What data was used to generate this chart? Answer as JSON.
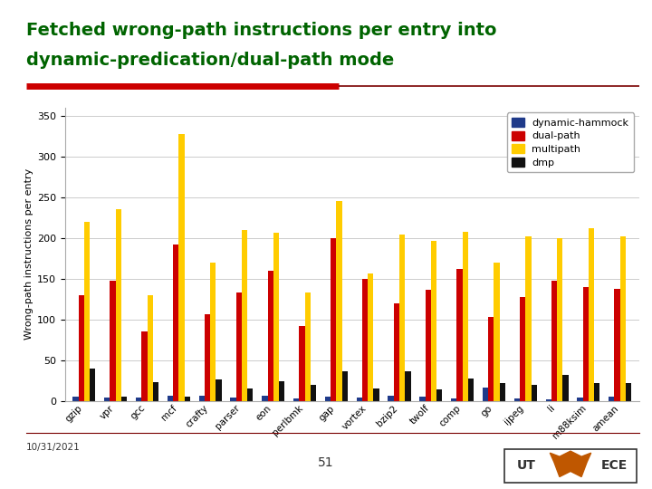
{
  "title_line1": "Fetched wrong-path instructions per entry into",
  "title_line2": "dynamic-predication/dual-path mode",
  "title_color": "#006400",
  "ylabel": "Wrong-path instructions per entry",
  "categories": [
    "gzip",
    "vpr",
    "gcc",
    "mcf",
    "crafty",
    "parser",
    "eon",
    "perlbmk",
    "gap",
    "vortex",
    "bzip2",
    "twolf",
    "comp",
    "go",
    "ijpeg",
    "li",
    "m88ksim",
    "amean"
  ],
  "dynamic_hammock": [
    5,
    4,
    4,
    7,
    7,
    4,
    6,
    3,
    5,
    4,
    6,
    5,
    3,
    16,
    3,
    2,
    4,
    5
  ],
  "dual_path": [
    130,
    148,
    85,
    192,
    107,
    133,
    160,
    92,
    200,
    150,
    120,
    137,
    162,
    103,
    128,
    148,
    140,
    138
  ],
  "multipath": [
    220,
    235,
    130,
    328,
    170,
    210,
    206,
    133,
    245,
    157,
    204,
    197,
    208,
    170,
    202,
    200,
    212,
    202
  ],
  "dmp": [
    40,
    5,
    23,
    5,
    26,
    15,
    24,
    20,
    37,
    15,
    37,
    14,
    28,
    22,
    20,
    32,
    22,
    22
  ],
  "bar_colors": [
    "#1f3a8a",
    "#cc0000",
    "#ffcc00",
    "#111111"
  ],
  "legend_labels": [
    "dynamic-hammock",
    "dual-path",
    "multipath",
    "dmp"
  ],
  "ylim": [
    0,
    360
  ],
  "yticks": [
    0,
    50,
    100,
    150,
    200,
    250,
    300,
    350
  ],
  "date_text": "10/31/2021",
  "page_number": "51",
  "fig_bg_color": "#ffffff",
  "plot_bg_color": "#ffffff",
  "grid_color": "#cccccc",
  "sep_color_left": "#cc0000",
  "sep_color_right": "#7a0000"
}
